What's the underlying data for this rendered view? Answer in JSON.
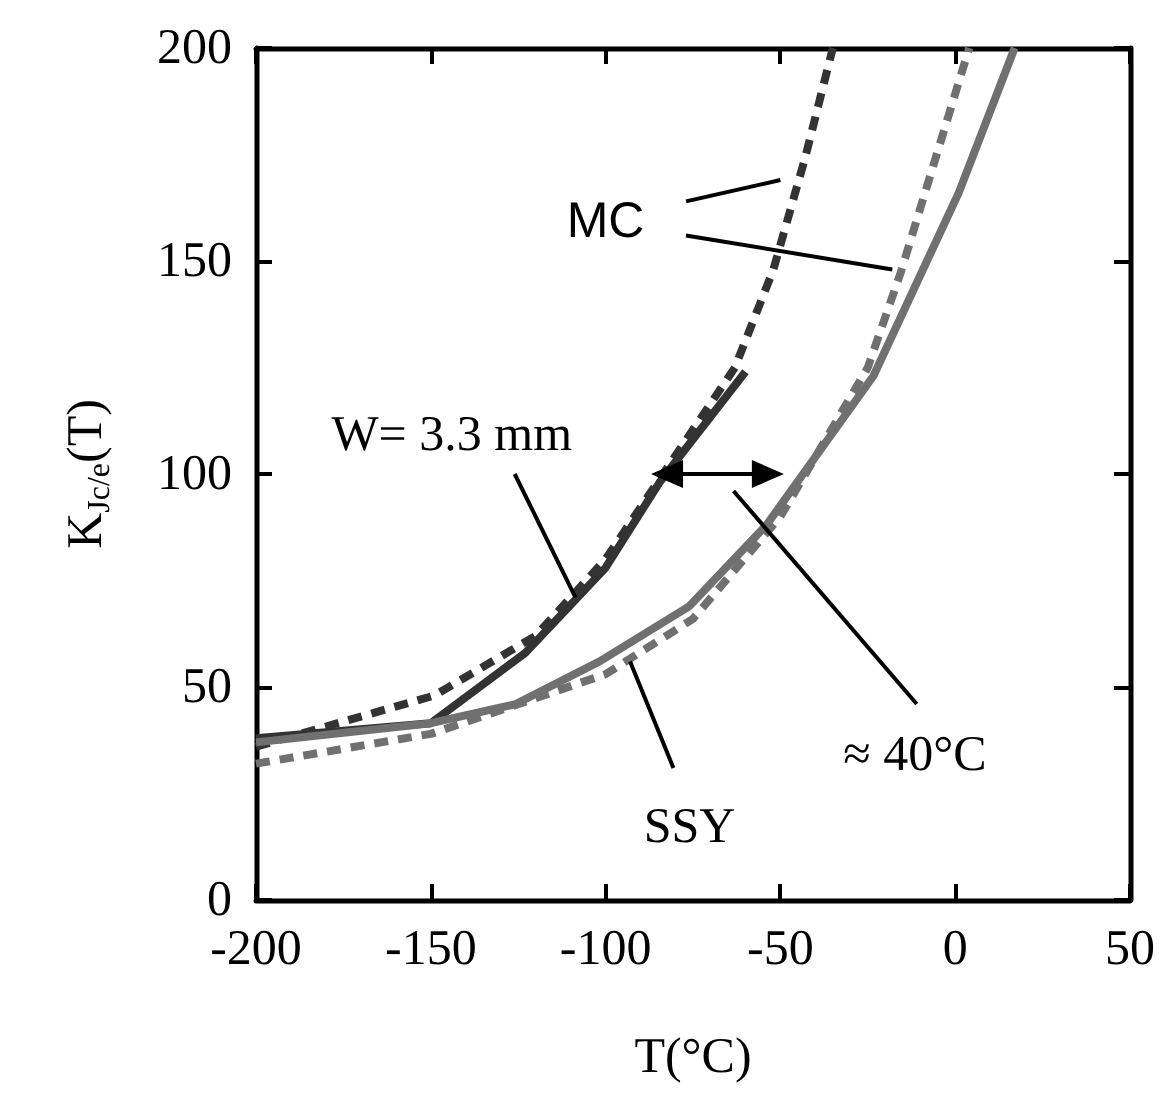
{
  "chart_data": {
    "type": "line",
    "xlabel": "T(°C)",
    "ylabel": "K$_{Jc/e}$(T)",
    "xlim": [
      -200,
      50
    ],
    "xticks": [
      -200,
      -150,
      -100,
      -50,
      0,
      50
    ],
    "ylim": [
      0,
      200
    ],
    "yticks": [
      0,
      50,
      100,
      150,
      200
    ],
    "grid": false,
    "marker": "none",
    "series": [
      {
        "color": "#333333",
        "line_style": "solid",
        "x": [
          -200,
          -150,
          -123,
          -100,
          -84.6,
          -60
        ],
        "values": [
          38,
          41.5,
          58,
          78,
          98,
          124
        ]
      },
      {
        "color": "#333333",
        "line_style": "dashed",
        "x": [
          -200,
          -149,
          -120,
          -100,
          -63,
          -52,
          -43,
          -35
        ],
        "values": [
          36,
          48,
          62,
          80,
          125,
          148,
          174,
          200
        ]
      },
      {
        "color": "#707070",
        "line_style": "solid",
        "x": [
          -200,
          -150,
          -125.7,
          -101.7,
          -76,
          -54,
          -23.4,
          1,
          17
        ],
        "values": [
          37,
          41.5,
          46,
          56,
          69,
          88,
          123,
          166,
          200
        ]
      },
      {
        "color": "#707070",
        "line_style": "dashed",
        "x": [
          -200,
          -150,
          -100,
          -75,
          -50,
          -25,
          -15.7,
          4
        ],
        "values": [
          32,
          39,
          53,
          66,
          90,
          125,
          147,
          200
        ]
      }
    ],
    "annotations": [
      {
        "text": "MC",
        "x": -18,
        "y": 148
      },
      {
        "text": "W= 3.3 mm",
        "x": -108.6,
        "y": 71
      },
      {
        "text": "SSY",
        "x": -93,
        "y": 56
      },
      "≈ 40°C"
    ]
  }
}
